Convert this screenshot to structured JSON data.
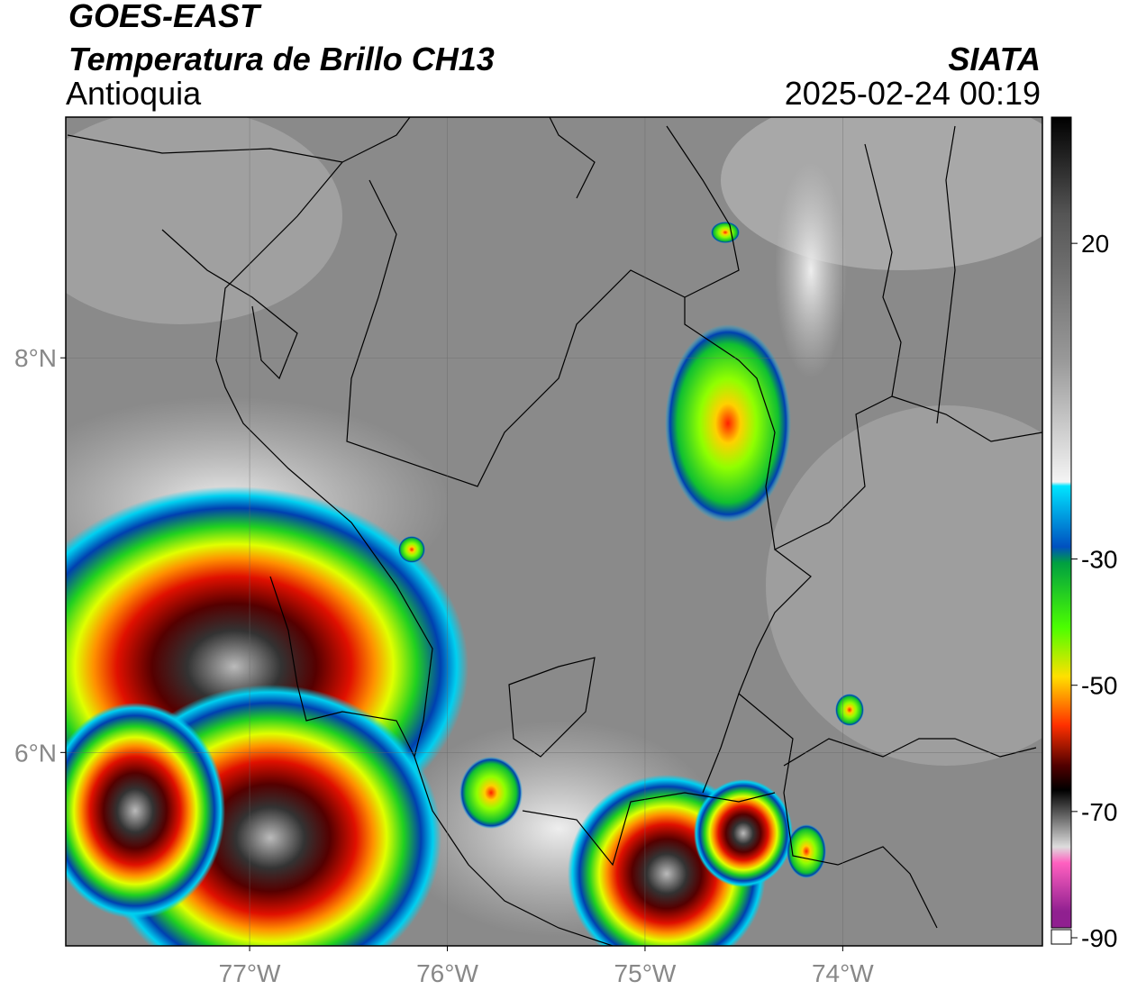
{
  "header": {
    "satellite": "GOES-EAST",
    "product": "Temperatura de Brillo CH13",
    "region": "Antioquia",
    "source": "SIATA",
    "datetime": "2025-02-24 00:19"
  },
  "map": {
    "xlim": [
      -77.93,
      -72.99
    ],
    "ylim": [
      5.02,
      9.22
    ],
    "xticks": [
      {
        "value": -77,
        "label": "77°W"
      },
      {
        "value": -76,
        "label": "76°W"
      },
      {
        "value": -75,
        "label": "75°W"
      },
      {
        "value": -74,
        "label": "74°W"
      }
    ],
    "yticks": [
      {
        "value": 8,
        "label": "8°N"
      },
      {
        "value": 6,
        "label": "6°N"
      }
    ],
    "grid": true
  },
  "colorbar": {
    "range": [
      -91,
      40
    ],
    "ticks": [
      20,
      -30,
      -50,
      -70,
      -90
    ]
  }
}
